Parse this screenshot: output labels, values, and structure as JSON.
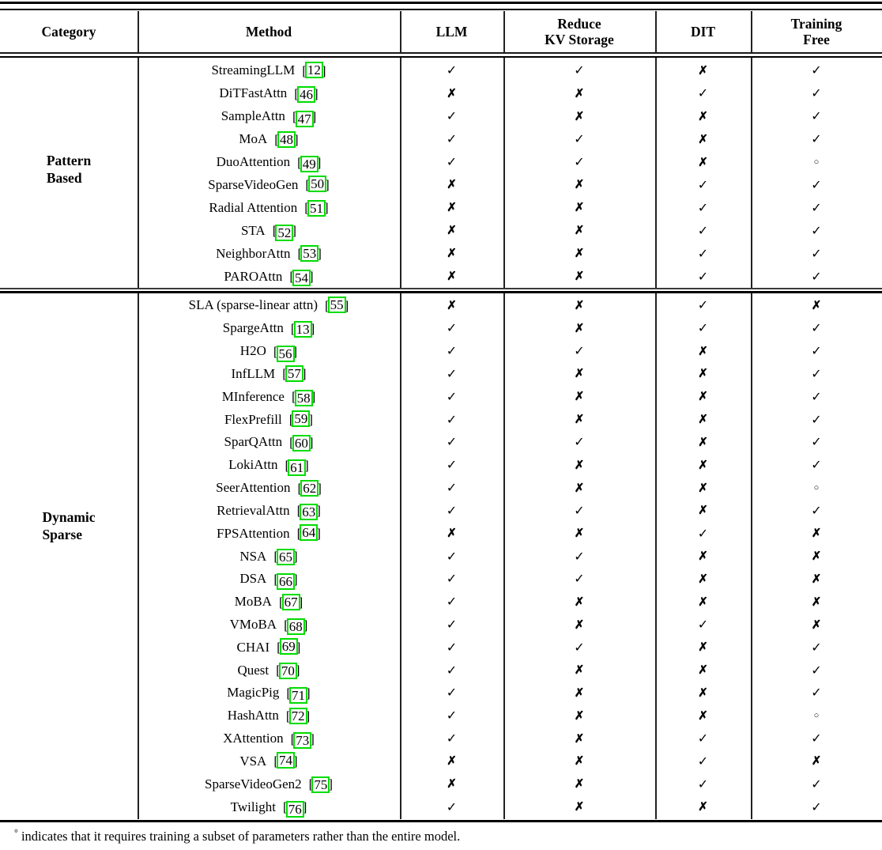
{
  "header": {
    "category": "Category",
    "method": "Method",
    "llm": "LLM",
    "reduce_kv": [
      "Reduce",
      "KV Storage"
    ],
    "dit": "DIT",
    "training_free": [
      "Training",
      "Free"
    ]
  },
  "marks": {
    "check": "✓",
    "cross": "✗",
    "circle": "○"
  },
  "brackets": {
    "open": "[",
    "close": "]"
  },
  "colors": {
    "cite_link_border": "#00DC00"
  },
  "sections": [
    {
      "category_lines": [
        "Pattern",
        "Based"
      ],
      "rows": [
        {
          "method": "StreamingLLM",
          "cite": "12",
          "marks": [
            "check",
            "check",
            "cross",
            "check"
          ]
        },
        {
          "method": "DiTFastAttn",
          "cite": "46",
          "marks": [
            "cross",
            "cross",
            "check",
            "check"
          ]
        },
        {
          "method": "SampleAttn",
          "cite": "47",
          "marks": [
            "check",
            "cross",
            "cross",
            "check"
          ]
        },
        {
          "method": "MoA",
          "cite": "48",
          "marks": [
            "check",
            "check",
            "cross",
            "check"
          ]
        },
        {
          "method": "DuoAttention",
          "cite": "49",
          "marks": [
            "check",
            "check",
            "cross",
            "circle"
          ]
        },
        {
          "method": "SparseVideoGen",
          "cite": "50",
          "marks": [
            "cross",
            "cross",
            "check",
            "check"
          ]
        },
        {
          "method": "Radial Attention",
          "cite": "51",
          "marks": [
            "cross",
            "cross",
            "check",
            "check"
          ]
        },
        {
          "method": "STA",
          "cite": "52",
          "marks": [
            "cross",
            "cross",
            "check",
            "check"
          ]
        },
        {
          "method": "NeighborAttn",
          "cite": "53",
          "marks": [
            "cross",
            "cross",
            "check",
            "check"
          ]
        },
        {
          "method": "PAROAttn",
          "cite": "54",
          "marks": [
            "cross",
            "cross",
            "check",
            "check"
          ]
        }
      ]
    },
    {
      "category_lines": [
        "Dynamic",
        "Sparse"
      ],
      "rows": [
        {
          "method": "SLA (sparse-linear attn)",
          "cite": "55",
          "marks": [
            "cross",
            "cross",
            "check",
            "cross"
          ]
        },
        {
          "method": "SpargeAttn",
          "cite": "13",
          "marks": [
            "check",
            "cross",
            "check",
            "check"
          ]
        },
        {
          "method": "H2O",
          "cite": "56",
          "marks": [
            "check",
            "check",
            "cross",
            "check"
          ]
        },
        {
          "method": "InfLLM",
          "cite": "57",
          "marks": [
            "check",
            "cross",
            "cross",
            "check"
          ]
        },
        {
          "method": "MInference",
          "cite": "58",
          "marks": [
            "check",
            "cross",
            "cross",
            "check"
          ]
        },
        {
          "method": "FlexPrefill",
          "cite": "59",
          "marks": [
            "check",
            "cross",
            "cross",
            "check"
          ]
        },
        {
          "method": "SparQAttn",
          "cite": "60",
          "marks": [
            "check",
            "check",
            "cross",
            "check"
          ]
        },
        {
          "method": "LokiAttn",
          "cite": "61",
          "marks": [
            "check",
            "cross",
            "cross",
            "check"
          ]
        },
        {
          "method": "SeerAttention",
          "cite": "62",
          "marks": [
            "check",
            "cross",
            "cross",
            "circle"
          ]
        },
        {
          "method": "RetrievalAttn",
          "cite": "63",
          "marks": [
            "check",
            "check",
            "cross",
            "check"
          ]
        },
        {
          "method": "FPSAttention",
          "cite": "64",
          "marks": [
            "cross",
            "cross",
            "check",
            "cross"
          ]
        },
        {
          "method": "NSA",
          "cite": "65",
          "marks": [
            "check",
            "check",
            "cross",
            "cross"
          ]
        },
        {
          "method": "DSA",
          "cite": "66",
          "marks": [
            "check",
            "check",
            "cross",
            "cross"
          ]
        },
        {
          "method": "MoBA",
          "cite": "67",
          "marks": [
            "check",
            "cross",
            "cross",
            "cross"
          ]
        },
        {
          "method": "VMoBA",
          "cite": "68",
          "marks": [
            "check",
            "cross",
            "check",
            "cross"
          ]
        },
        {
          "method": "CHAI",
          "cite": "69",
          "marks": [
            "check",
            "check",
            "cross",
            "check"
          ]
        },
        {
          "method": "Quest",
          "cite": "70",
          "marks": [
            "check",
            "cross",
            "cross",
            "check"
          ]
        },
        {
          "method": "MagicPig",
          "cite": "71",
          "marks": [
            "check",
            "cross",
            "cross",
            "check"
          ]
        },
        {
          "method": "HashAttn",
          "cite": "72",
          "marks": [
            "check",
            "cross",
            "cross",
            "circle"
          ]
        },
        {
          "method": "XAttention",
          "cite": "73",
          "marks": [
            "check",
            "cross",
            "check",
            "check"
          ]
        },
        {
          "method": "VSA",
          "cite": "74",
          "marks": [
            "cross",
            "cross",
            "check",
            "cross"
          ]
        },
        {
          "method": "SparseVideoGen2",
          "cite": "75",
          "marks": [
            "cross",
            "cross",
            "check",
            "check"
          ]
        },
        {
          "method": "Twilight",
          "cite": "76",
          "marks": [
            "check",
            "cross",
            "cross",
            "check"
          ]
        }
      ]
    }
  ],
  "footnote": {
    "symbol": "°",
    "text": "indicates that it requires training a subset of parameters rather than the entire model."
  }
}
